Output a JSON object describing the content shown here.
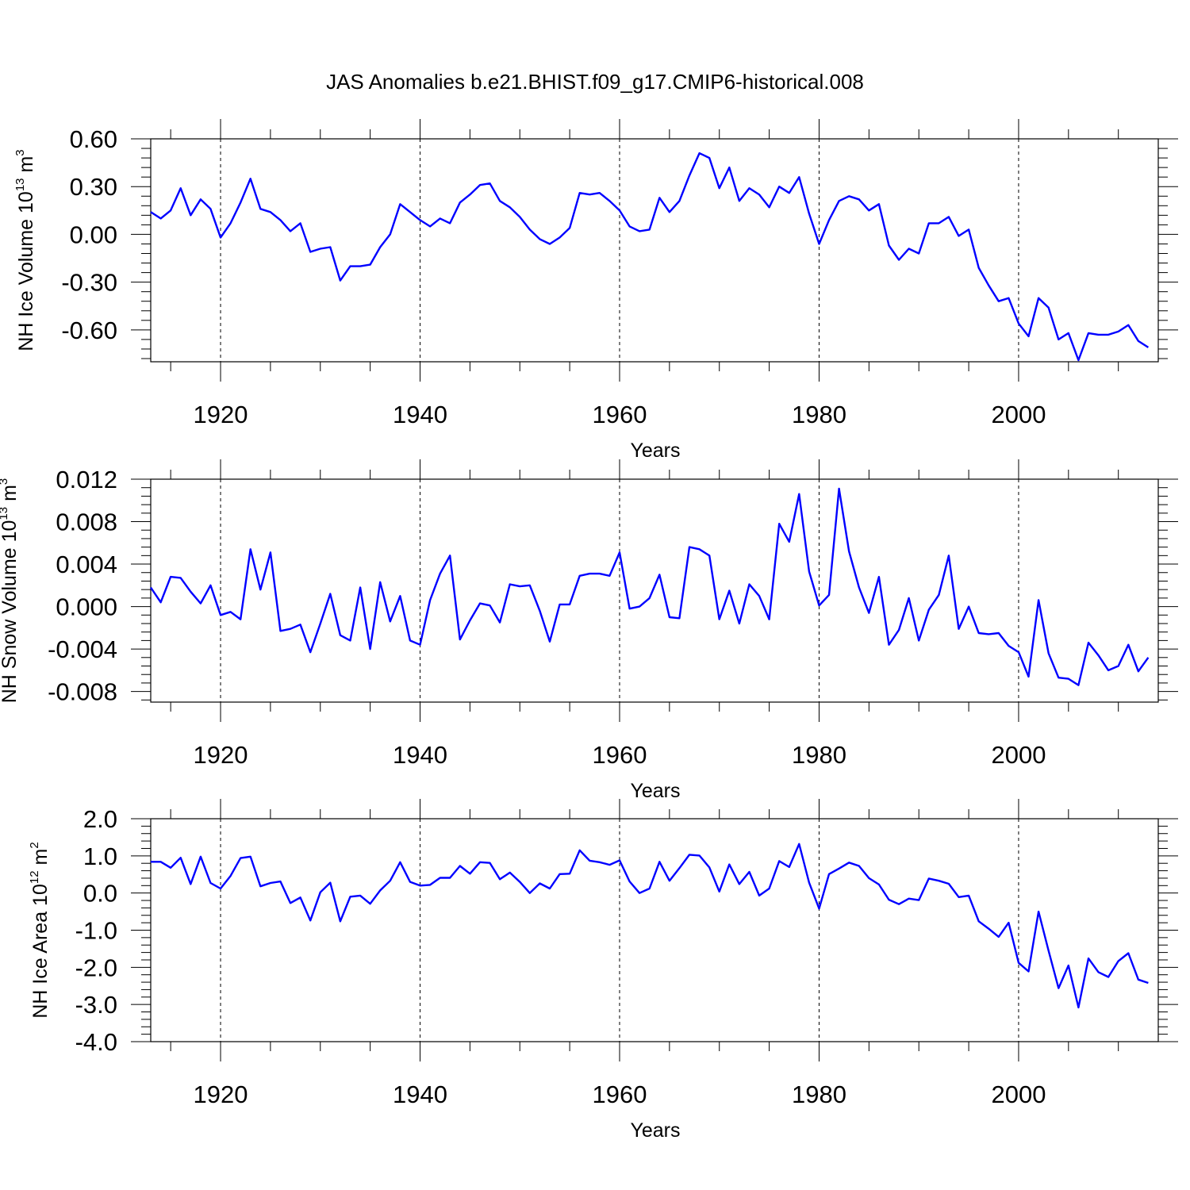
{
  "chart_data": {
    "title": "JAS Anomalies b.e21.BHIST.f09_g17.CMIP6-historical.008",
    "xlabel": "Years",
    "x_start": 1913,
    "x_end": 2014,
    "xlim": [
      1913,
      2014
    ],
    "x_ticks": [
      1920,
      1940,
      1960,
      1980,
      2000
    ],
    "x_tick_labels": [
      "1920",
      "1940",
      "1960",
      "1980",
      "2000"
    ],
    "line_color": "#0000ff",
    "panels": [
      {
        "type": "line",
        "ylabel_main": "NH Ice Volume 10",
        "ylabel_exp": "13",
        "ylabel_unit": " m",
        "ylabel_unit_exp": "3",
        "ylim": [
          -0.8,
          0.6
        ],
        "y_ticks": [
          0.6,
          0.3,
          0.0,
          -0.3,
          -0.6
        ],
        "y_tick_labels": [
          "0.60",
          "0.30",
          "0.00",
          "-0.30",
          "-0.60"
        ],
        "values": [
          0.14,
          0.1,
          0.15,
          0.29,
          0.12,
          0.22,
          0.16,
          -0.02,
          0.07,
          0.2,
          0.35,
          0.16,
          0.14,
          0.09,
          0.02,
          0.07,
          -0.11,
          -0.09,
          -0.08,
          -0.29,
          -0.2,
          -0.2,
          -0.19,
          -0.08,
          0.0,
          0.19,
          0.14,
          0.09,
          0.05,
          0.1,
          0.07,
          0.2,
          0.25,
          0.31,
          0.32,
          0.21,
          0.17,
          0.11,
          0.03,
          -0.03,
          -0.06,
          -0.02,
          0.04,
          0.26,
          0.25,
          0.26,
          0.21,
          0.15,
          0.05,
          0.02,
          0.03,
          0.23,
          0.14,
          0.21,
          0.37,
          0.51,
          0.48,
          0.29,
          0.42,
          0.21,
          0.29,
          0.25,
          0.17,
          0.3,
          0.26,
          0.36,
          0.13,
          -0.06,
          0.09,
          0.21,
          0.24,
          0.22,
          0.15,
          0.19,
          -0.07,
          -0.16,
          -0.09,
          -0.12,
          0.07,
          0.07,
          0.11,
          -0.01,
          0.03,
          -0.21,
          -0.32,
          -0.42,
          -0.4,
          -0.56,
          -0.64,
          -0.4,
          -0.46,
          -0.66,
          -0.62,
          -0.79,
          -0.62,
          -0.63,
          -0.63,
          -0.61,
          -0.57,
          -0.67,
          -0.71
        ]
      },
      {
        "type": "line",
        "ylabel_main": "NH Snow Volume 10",
        "ylabel_exp": "13",
        "ylabel_unit": " m",
        "ylabel_unit_exp": "3",
        "ylim": [
          -0.009,
          0.012
        ],
        "y_ticks": [
          0.012,
          0.008,
          0.004,
          0.0,
          -0.004,
          -0.008
        ],
        "y_tick_labels": [
          "0.012",
          "0.008",
          "0.004",
          "0.000",
          "-0.004",
          "-0.008"
        ],
        "values": [
          0.0018,
          0.0004,
          0.0028,
          0.0027,
          0.0014,
          0.0003,
          0.002,
          -0.0008,
          -0.0005,
          -0.0012,
          0.0054,
          0.0016,
          0.0051,
          -0.0023,
          -0.0021,
          -0.0017,
          -0.0043,
          -0.0016,
          0.0012,
          -0.0027,
          -0.0032,
          0.0018,
          -0.004,
          0.0023,
          -0.0014,
          0.001,
          -0.0032,
          -0.0036,
          0.0006,
          0.0031,
          0.0048,
          -0.0031,
          -0.0013,
          0.0003,
          0.0001,
          -0.0015,
          0.0021,
          0.0019,
          0.002,
          -0.0004,
          -0.0033,
          0.0002,
          0.0002,
          0.0029,
          0.0031,
          0.0031,
          0.0029,
          0.0051,
          -0.0002,
          0.0,
          0.0008,
          0.003,
          -0.001,
          -0.0011,
          0.0056,
          0.0054,
          0.0048,
          -0.0012,
          0.0015,
          -0.0016,
          0.0021,
          0.001,
          -0.0012,
          0.0078,
          0.0061,
          0.0106,
          0.0033,
          0.0001,
          0.0011,
          0.0111,
          0.0052,
          0.0018,
          -0.0006,
          0.0028,
          -0.0036,
          -0.0022,
          0.0008,
          -0.0032,
          -0.0003,
          0.0011,
          0.0048,
          -0.0021,
          0.0,
          -0.0025,
          -0.0026,
          -0.0025,
          -0.0037,
          -0.0043,
          -0.0066,
          0.0006,
          -0.0044,
          -0.0067,
          -0.0068,
          -0.0074,
          -0.0034,
          -0.0046,
          -0.006,
          -0.0056,
          -0.0036,
          -0.0061,
          -0.0048
        ]
      },
      {
        "type": "line",
        "ylabel_main": "NH Ice Area 10",
        "ylabel_exp": "12",
        "ylabel_unit": " m",
        "ylabel_unit_exp": "2",
        "ylim": [
          -4.0,
          2.0
        ],
        "y_ticks": [
          2.0,
          1.0,
          0.0,
          -1.0,
          -2.0,
          -3.0,
          -4.0
        ],
        "y_tick_labels": [
          "2.0",
          "1.0",
          "0.0",
          "-1.0",
          "-2.0",
          "-3.0",
          "-4.0"
        ],
        "values": [
          0.84,
          0.84,
          0.68,
          0.95,
          0.24,
          0.98,
          0.27,
          0.12,
          0.46,
          0.94,
          0.98,
          0.18,
          0.27,
          0.31,
          -0.27,
          -0.12,
          -0.74,
          0.02,
          0.28,
          -0.76,
          -0.1,
          -0.07,
          -0.29,
          0.07,
          0.33,
          0.83,
          0.3,
          0.2,
          0.22,
          0.41,
          0.41,
          0.73,
          0.52,
          0.83,
          0.81,
          0.37,
          0.55,
          0.3,
          0.0,
          0.26,
          0.12,
          0.51,
          0.52,
          1.15,
          0.87,
          0.83,
          0.76,
          0.88,
          0.31,
          0.0,
          0.12,
          0.84,
          0.33,
          0.67,
          1.03,
          1.01,
          0.69,
          0.04,
          0.77,
          0.24,
          0.57,
          -0.07,
          0.12,
          0.86,
          0.7,
          1.32,
          0.28,
          -0.42,
          0.51,
          0.66,
          0.82,
          0.73,
          0.4,
          0.23,
          -0.18,
          -0.3,
          -0.15,
          -0.19,
          0.39,
          0.33,
          0.25,
          -0.11,
          -0.07,
          -0.76,
          -0.96,
          -1.18,
          -0.8,
          -1.88,
          -2.11,
          -0.5,
          -1.55,
          -2.56,
          -1.95,
          -3.08,
          -1.76,
          -2.13,
          -2.26,
          -1.83,
          -1.62,
          -2.33,
          -2.42
        ]
      }
    ]
  }
}
